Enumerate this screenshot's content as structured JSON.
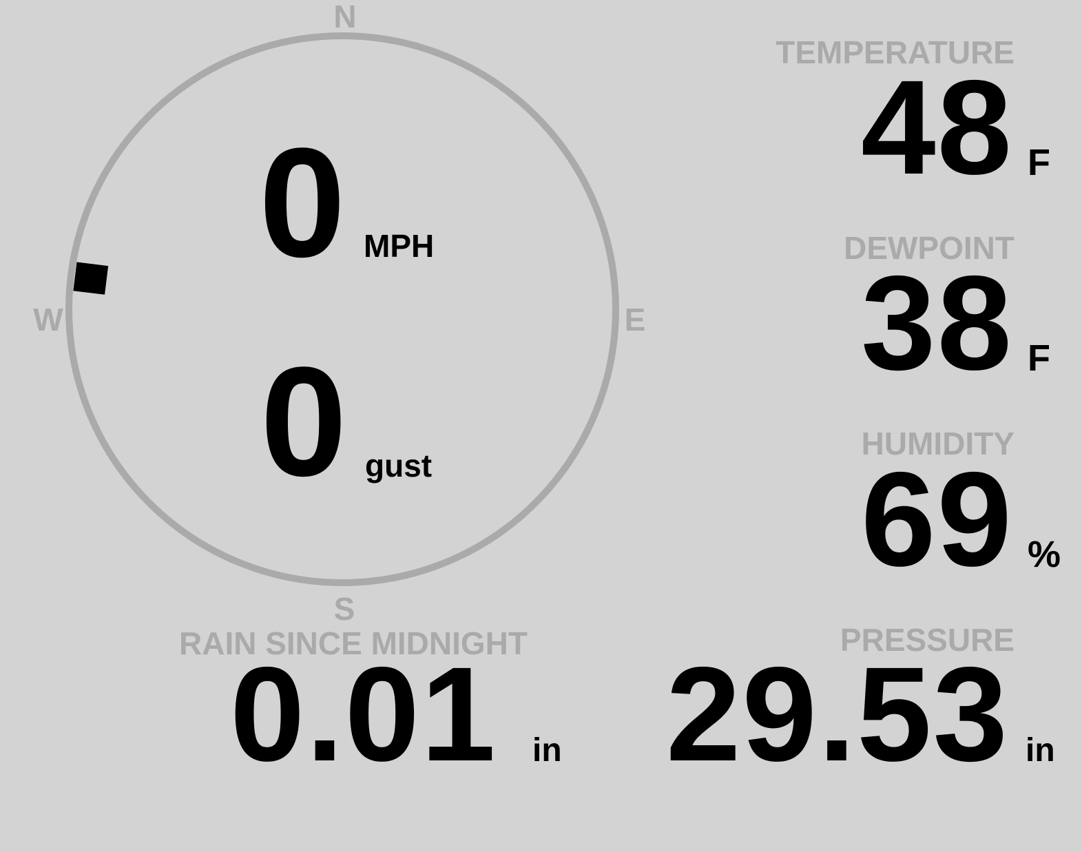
{
  "wind": {
    "speed": "0",
    "speed_unit": "MPH",
    "gust": "0",
    "gust_unit": "gust",
    "direction_deg": 277,
    "compass": {
      "n": "N",
      "e": "E",
      "s": "S",
      "w": "W"
    }
  },
  "temperature": {
    "label": "TEMPERATURE",
    "value": "48",
    "unit": "F"
  },
  "dewpoint": {
    "label": "DEWPOINT",
    "value": "38",
    "unit": "F"
  },
  "humidity": {
    "label": "HUMIDITY",
    "value": "69",
    "unit": "%"
  },
  "pressure": {
    "label": "PRESSURE",
    "value": "29.53",
    "unit": "in"
  },
  "rain": {
    "label": "RAIN SINCE MIDNIGHT",
    "value": "0.01",
    "unit": "in"
  },
  "colors": {
    "background": "#d3d3d3",
    "label": "#aaaaaa",
    "value": "#000000",
    "dial": "#aaaaaa"
  }
}
